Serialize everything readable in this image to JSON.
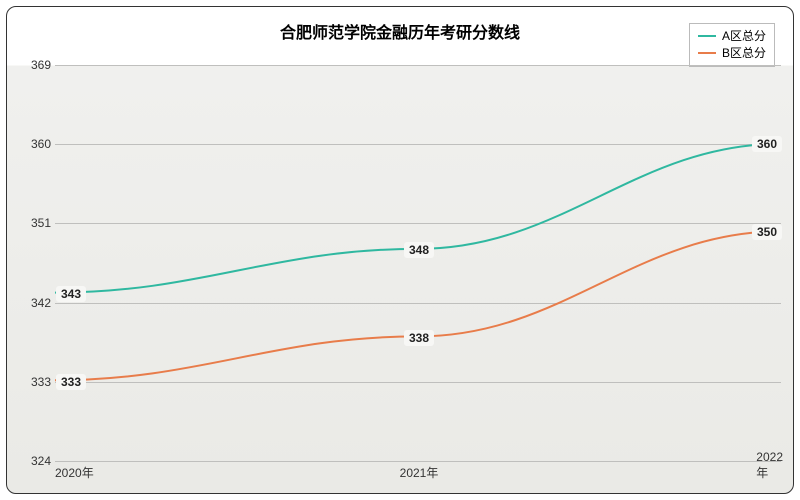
{
  "chart": {
    "type": "line",
    "title": "合肥师范学院金融历年考研分数线",
    "title_fontsize": 16,
    "background_top": "#ffffff",
    "background_plot": "#eeeeeb",
    "border_color": "#333333",
    "border_radius": 10,
    "grid_color": "#bfbfbd",
    "x": {
      "categories": [
        "2020年",
        "2021年",
        "2022年"
      ],
      "label_fontsize": 12,
      "label_color": "#333333"
    },
    "y": {
      "min": 324,
      "max": 369,
      "tick_step": 9,
      "ticks": [
        324,
        333,
        342,
        351,
        360,
        369
      ],
      "label_fontsize": 12,
      "label_color": "#333333"
    },
    "series": [
      {
        "name": "A区总分",
        "color": "#2fb8a0",
        "line_width": 2,
        "values": [
          343,
          348,
          360
        ],
        "smooth": true
      },
      {
        "name": "B区总分",
        "color": "#e87c4a",
        "line_width": 2,
        "values": [
          333,
          338,
          350
        ],
        "smooth": true
      }
    ],
    "legend": {
      "position": "top-right",
      "background": "#ffffff",
      "border_color": "#bbbbbb",
      "fontsize": 12
    },
    "data_labels": {
      "background": "#f7f7f5",
      "fontsize": 12,
      "font_weight": "bold",
      "color": "#222222"
    }
  }
}
